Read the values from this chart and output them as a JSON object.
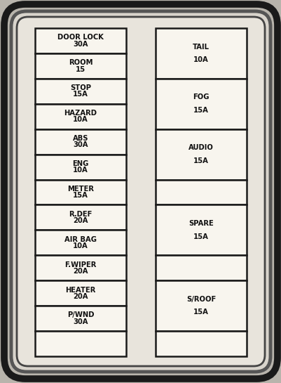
{
  "bg_color": "#b8b4ac",
  "inner_bg": "#d8d4cc",
  "innermost_bg": "#e8e4dc",
  "box_fill": "#f8f5ee",
  "border_dark": "#1a1a1a",
  "border_mid": "#2a2a2a",
  "text_color": "#111111",
  "left_fuses": [
    "DOOR LOCK\n30A",
    "ROOM\n15",
    "STOP\n15A",
    "HAZARD\n10A",
    "ABS\n30A",
    "ENG\n10A",
    "METER\n15A",
    "R.DEF\n20A",
    "AIR BAG\n10A",
    "F.WIPER\n20A",
    "HEATER\n20A",
    "P/WND\n30A",
    ""
  ],
  "right_fuses": [
    {
      "label": "TAIL\n10A",
      "rows": 2
    },
    {
      "label": "FOG\n15A",
      "rows": 2
    },
    {
      "label": "AUDIO\n15A",
      "rows": 2
    },
    {
      "label": "",
      "rows": 1
    },
    {
      "label": "SPARE\n15A",
      "rows": 2
    },
    {
      "label": "",
      "rows": 1
    },
    {
      "label": "S/ROOF\n15A",
      "rows": 2
    },
    {
      "label": "",
      "rows": 1
    }
  ],
  "fig_width": 4.02,
  "fig_height": 5.45,
  "dpi": 100
}
